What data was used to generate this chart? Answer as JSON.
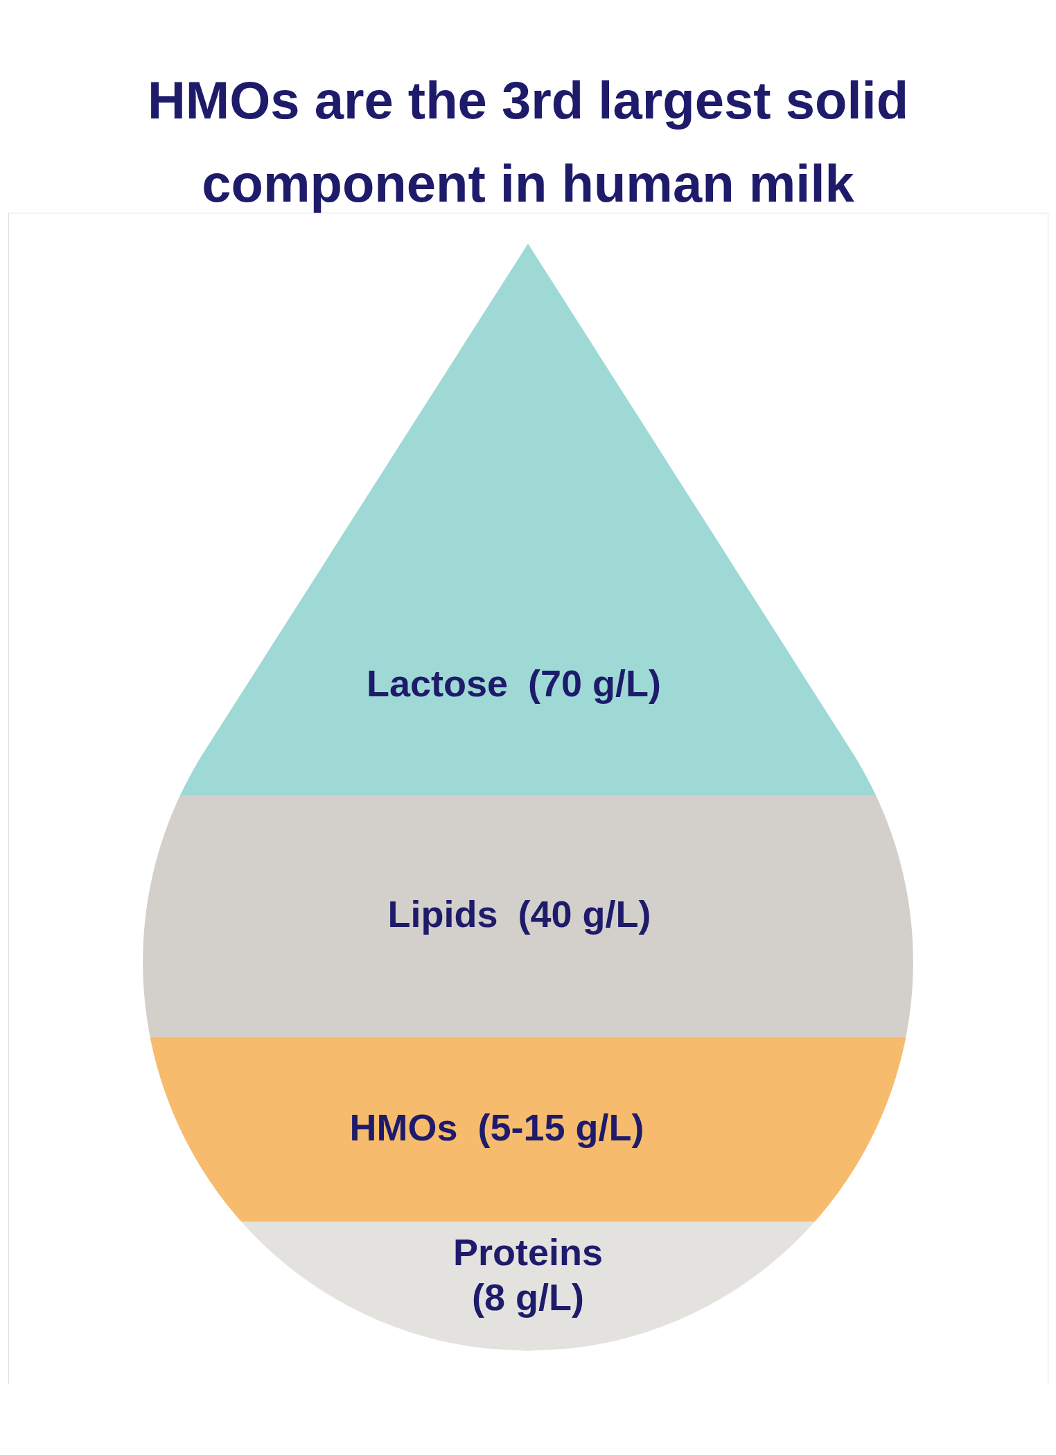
{
  "chart_data": {
    "type": "other",
    "title": "HMOs are the 3rd largest solid component in human milk",
    "categories": [
      "Lactose",
      "Lipids",
      "HMOs",
      "Proteins"
    ],
    "values": [
      70,
      40,
      null,
      8
    ],
    "value_labels": [
      "(70 g/L)",
      "(40 g/L)",
      "(5-15 g/L)",
      "(8 g/L)"
    ],
    "colors": [
      "#9ed9d6",
      "#d3d0cb",
      "#f7bb6d",
      "#e3e2df"
    ]
  }
}
